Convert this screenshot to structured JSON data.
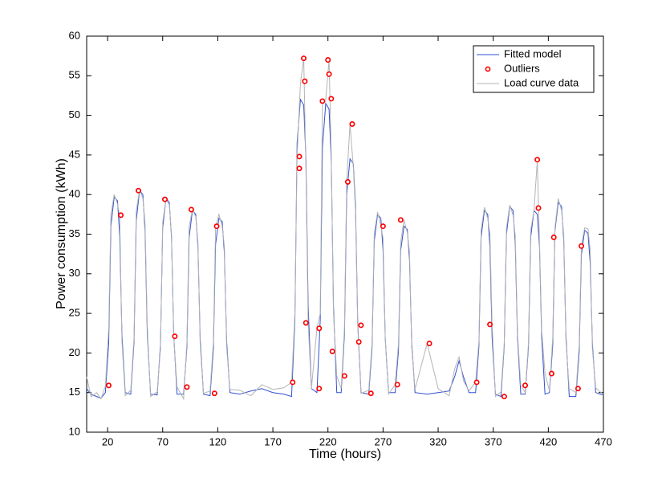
{
  "chart_data": {
    "type": "line",
    "xlabel": "Time (hours)",
    "ylabel": "Power consumption (kWh)",
    "xlim": [
      1,
      470
    ],
    "ylim": [
      10,
      60
    ],
    "xticks": [
      20,
      70,
      120,
      170,
      220,
      270,
      320,
      370,
      420,
      470
    ],
    "yticks": [
      10,
      15,
      20,
      25,
      30,
      35,
      40,
      45,
      50,
      55,
      60
    ],
    "grid": false,
    "legend": "upper right",
    "x": [
      1,
      5,
      10,
      14,
      18,
      21,
      23,
      26,
      29,
      31,
      33,
      36,
      41,
      44,
      46,
      49,
      52,
      54,
      56,
      59,
      65,
      68,
      70,
      73,
      76,
      78,
      80,
      83,
      89,
      92,
      94,
      97,
      100,
      102,
      104,
      107,
      113,
      116,
      118,
      121,
      124,
      126,
      128,
      131,
      140,
      150,
      160,
      170,
      180,
      187,
      190,
      192,
      195,
      198,
      200,
      202,
      205,
      210,
      213,
      215,
      218,
      221,
      223,
      225,
      228,
      232,
      235,
      237,
      240,
      243,
      245,
      247,
      250,
      257,
      260,
      262,
      265,
      268,
      270,
      272,
      275,
      281,
      284,
      286,
      289,
      292,
      294,
      296,
      299,
      310,
      320,
      330,
      335,
      339,
      343,
      348,
      354,
      357,
      359,
      362,
      365,
      367,
      369,
      372,
      377,
      380,
      382,
      385,
      388,
      390,
      392,
      395,
      399,
      402,
      404,
      407,
      410,
      412,
      414,
      417,
      421,
      424,
      426,
      429,
      432,
      434,
      436,
      439,
      445,
      448,
      450,
      453,
      456,
      458,
      460,
      463,
      467,
      470
    ],
    "series": [
      {
        "name": "Fitted model",
        "type": "line",
        "color": "#3050d0",
        "values": [
          15.5,
          14.8,
          14.5,
          14.3,
          15,
          21.2,
          36,
          39.7,
          39.2,
          34.8,
          22.4,
          15,
          14.8,
          21.4,
          36.7,
          40.5,
          40,
          35.4,
          22.6,
          14.8,
          14.7,
          21.1,
          35.8,
          39.5,
          39,
          34.6,
          22.4,
          14.8,
          14.8,
          20.8,
          34.6,
          38,
          37.5,
          33.4,
          21.9,
          14.8,
          14.6,
          20.5,
          33.7,
          37,
          36.6,
          32.6,
          21.6,
          15,
          14.8,
          15.2,
          15.5,
          15,
          14.8,
          14.5,
          24.2,
          46.5,
          52,
          51.3,
          44.6,
          26.1,
          15.5,
          15,
          24.1,
          46,
          51.5,
          50.8,
          44.2,
          26,
          15,
          15,
          22.4,
          40,
          44.5,
          43.9,
          38.6,
          23.9,
          15,
          14.8,
          20.6,
          34.1,
          37.5,
          37,
          33,
          21.8,
          15,
          15,
          20.3,
          32.9,
          36,
          35.6,
          31.8,
          21.3,
          15,
          14.8,
          15,
          15.2,
          17,
          19,
          17,
          15,
          15,
          20.8,
          34.6,
          38,
          37.5,
          33.4,
          21.9,
          14.8,
          14.5,
          20.9,
          35,
          38.5,
          38,
          33.8,
          22,
          14.8,
          14.8,
          20.8,
          34.6,
          38,
          37.5,
          33.4,
          21.9,
          14.8,
          15,
          21,
          35.4,
          39,
          38.5,
          34.2,
          22.2,
          14.5,
          14.5,
          20.1,
          32.4,
          35.5,
          35.1,
          31.4,
          21.2,
          15,
          14.8,
          14.7
        ]
      },
      {
        "name": "Outliers",
        "type": "scatter",
        "color": "#ff0000",
        "x": [
          21,
          32,
          48,
          72,
          81,
          92,
          96,
          117,
          119,
          188,
          194,
          194,
          198,
          199,
          200,
          212,
          212,
          215,
          220,
          221,
          223,
          224,
          235,
          238,
          242,
          248,
          250,
          259,
          270,
          283,
          286,
          312,
          355,
          367,
          380,
          399,
          410,
          411,
          423,
          425,
          447,
          450
        ],
        "values": [
          15.9,
          37.4,
          40.5,
          39.4,
          22.1,
          15.7,
          38.1,
          14.9,
          36,
          16.3,
          43.3,
          44.8,
          57.2,
          54.3,
          23.8,
          15.5,
          23.1,
          51.8,
          57,
          55.2,
          52.1,
          20.2,
          17.1,
          41.6,
          48.9,
          21.4,
          23.5,
          14.9,
          36,
          16,
          36.8,
          21.2,
          16.3,
          23.6,
          14.5,
          15.9,
          44.4,
          38.3,
          17.4,
          34.6,
          15.5,
          33.5
        ]
      },
      {
        "name": "Load curve data",
        "type": "line",
        "color": "#b4b4b4",
        "values": [
          17,
          14.5,
          15,
          14.2,
          15.8,
          23,
          37.5,
          40,
          38.8,
          37.3,
          21.5,
          14.6,
          15.3,
          22,
          37.9,
          40.6,
          39.5,
          36.4,
          23.5,
          14.5,
          15.1,
          20.5,
          36.5,
          39.4,
          38.7,
          35,
          22.1,
          15.7,
          14.2,
          21.5,
          36,
          38.1,
          37.2,
          34,
          21.2,
          14.9,
          15.2,
          21.4,
          35.9,
          37.5,
          36,
          33.5,
          20.8,
          15.4,
          15.3,
          14.6,
          16,
          15.4,
          15.6,
          16.3,
          25,
          45,
          54,
          57.2,
          43.5,
          23.8,
          15.5,
          23.1,
          25,
          51.8,
          52,
          57,
          45,
          25,
          17.1,
          15.5,
          23.2,
          41.6,
          48.9,
          43.5,
          37.8,
          23.5,
          14.9,
          15.3,
          21.2,
          35,
          37.8,
          36,
          34.5,
          21.8,
          14.8,
          16,
          21.2,
          34,
          36.8,
          35.2,
          32.8,
          20.8,
          15.4,
          21.2,
          15.5,
          14.6,
          18,
          19.5,
          16.5,
          15.2,
          16.3,
          21.5,
          35.5,
          38.4,
          37,
          35,
          23.6,
          14.5,
          15.1,
          21.3,
          35.8,
          38.7,
          37.4,
          34.8,
          22.5,
          15.9,
          15,
          21.3,
          35.5,
          38,
          44.3,
          34,
          22.8,
          17.4,
          15.2,
          22,
          35.8,
          39.5,
          38,
          35,
          21.5,
          15.5,
          15,
          21,
          33.5,
          35.8,
          35.7,
          33,
          20.5,
          15.6,
          15.1,
          14.8
        ]
      }
    ]
  }
}
